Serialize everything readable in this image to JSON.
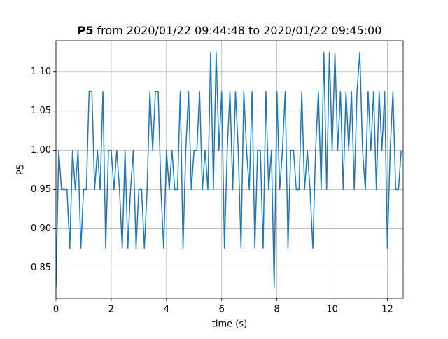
{
  "chart_data": {
    "type": "line",
    "title_bold": "P5",
    "title": "from 2020/01/22 09:44:48 to 2020/01/22 09:45:00",
    "x_label": "time (s)",
    "y_label": "P5",
    "x": [
      0,
      0.1,
      0.2,
      0.3,
      0.4,
      0.5,
      0.6,
      0.7,
      0.8,
      0.9,
      1.0,
      1.1,
      1.2,
      1.3,
      1.4,
      1.5,
      1.6,
      1.7,
      1.8,
      1.9,
      2.0,
      2.1,
      2.2,
      2.3,
      2.4,
      2.5,
      2.6,
      2.7,
      2.8,
      2.9,
      3.0,
      3.1,
      3.2,
      3.3,
      3.4,
      3.5,
      3.6,
      3.7,
      3.8,
      3.9,
      4.0,
      4.1,
      4.2,
      4.3,
      4.4,
      4.5,
      4.6,
      4.7,
      4.8,
      4.9,
      5.0,
      5.1,
      5.2,
      5.3,
      5.4,
      5.5,
      5.6,
      5.7,
      5.8,
      5.9,
      6.0,
      6.1,
      6.2,
      6.3,
      6.4,
      6.5,
      6.6,
      6.7,
      6.8,
      6.9,
      7.0,
      7.1,
      7.2,
      7.3,
      7.4,
      7.5,
      7.6,
      7.7,
      7.8,
      7.9,
      8.0,
      8.1,
      8.2,
      8.3,
      8.4,
      8.5,
      8.6,
      8.7,
      8.8,
      8.9,
      9.0,
      9.1,
      9.2,
      9.3,
      9.4,
      9.5,
      9.6,
      9.7,
      9.8,
      9.9,
      10.0,
      10.1,
      10.2,
      10.3,
      10.4,
      10.5,
      10.6,
      10.7,
      10.8,
      10.9,
      11.0,
      11.1,
      11.2,
      11.3,
      11.4,
      11.5,
      11.6,
      11.7,
      11.8,
      11.9,
      12.0,
      12.1,
      12.2,
      12.3,
      12.4,
      12.5
    ],
    "series": [
      {
        "color": "#1f77b4",
        "values": [
          0.825,
          1.0,
          0.95,
          0.95,
          0.95,
          0.875,
          1.0,
          0.95,
          1.0,
          0.875,
          0.95,
          0.95,
          1.075,
          1.075,
          0.95,
          1.0,
          0.95,
          1.075,
          0.875,
          1.0,
          1.0,
          0.95,
          1.0,
          0.95,
          0.875,
          1.0,
          0.875,
          0.95,
          1.0,
          0.875,
          0.95,
          0.95,
          0.875,
          0.95,
          1.075,
          1.0,
          1.075,
          1.075,
          0.95,
          0.875,
          1.0,
          0.95,
          1.0,
          0.95,
          0.95,
          1.075,
          0.875,
          1.0,
          1.075,
          0.95,
          1.0,
          1.0,
          1.075,
          0.95,
          1.0,
          0.95,
          1.125,
          0.95,
          1.125,
          1.0,
          1.075,
          0.875,
          1.0,
          1.075,
          0.95,
          1.075,
          1.0,
          0.875,
          1.075,
          1.0,
          0.95,
          1.075,
          0.875,
          1.0,
          1.0,
          0.875,
          1.075,
          0.95,
          1.0,
          0.825,
          1.075,
          0.95,
          1.0,
          1.075,
          0.875,
          1.0,
          1.0,
          0.95,
          0.95,
          1.075,
          0.95,
          1.0,
          0.95,
          0.875,
          1.0,
          1.075,
          0.95,
          1.125,
          0.95,
          1.125,
          1.0,
          1.125,
          1.0,
          1.075,
          0.95,
          1.075,
          1.0,
          1.075,
          0.95,
          1.075,
          1.125,
          1.0,
          0.95,
          1.075,
          1.0,
          1.075,
          0.95,
          1.075,
          1.0,
          1.075,
          0.875,
          1.0,
          1.075,
          0.95,
          0.95,
          1.0
        ]
      }
    ],
    "xlim": [
      0,
      12.57
    ],
    "xticks": [
      0,
      2,
      4,
      6,
      8,
      10,
      12
    ],
    "ylim": [
      0.811,
      1.14
    ],
    "yticks": [
      0.85,
      {
        "value": 0.9,
        "label": "0.90"
      },
      0.95,
      {
        "value": 1.0,
        "label": "1.00"
      },
      1.05,
      {
        "value": 1.1,
        "label": "1.10"
      }
    ],
    "grid": true
  }
}
